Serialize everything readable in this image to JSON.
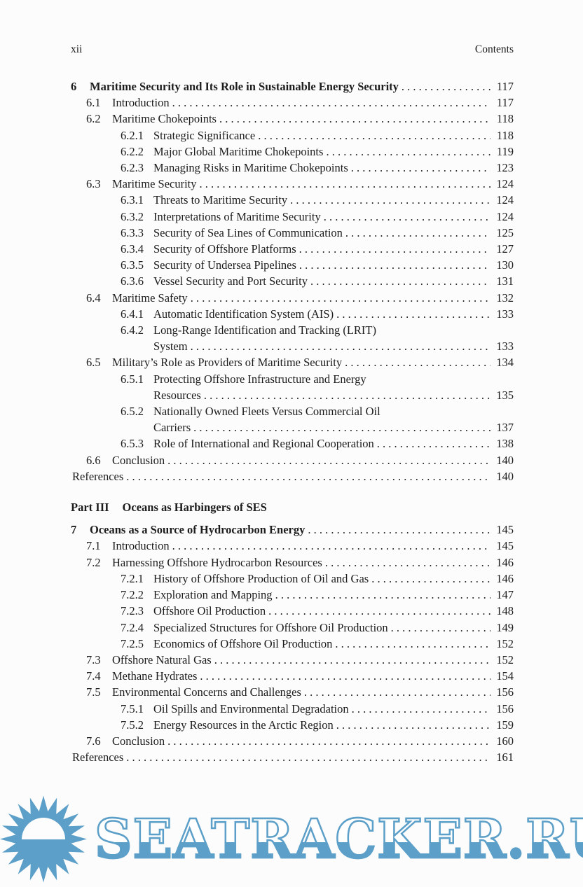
{
  "header": {
    "page_number": "xii",
    "running_title": "Contents"
  },
  "toc": {
    "entries": [
      {
        "level": "chapter",
        "number": "6",
        "title": "Maritime Security and Its Role in Sustainable Energy Security",
        "page": "117"
      },
      {
        "level": "section",
        "number": "6.1",
        "title": "Introduction",
        "page": "117"
      },
      {
        "level": "section",
        "number": "6.2",
        "title": "Maritime Chokepoints",
        "page": "118"
      },
      {
        "level": "subsection",
        "number": "6.2.1",
        "title": "Strategic Significance",
        "page": "118"
      },
      {
        "level": "subsection",
        "number": "6.2.2",
        "title": "Major Global Maritime Chokepoints",
        "page": "119"
      },
      {
        "level": "subsection",
        "number": "6.2.3",
        "title": "Managing Risks in Maritime Chokepoints",
        "page": "123"
      },
      {
        "level": "section",
        "number": "6.3",
        "title": "Maritime Security",
        "page": "124"
      },
      {
        "level": "subsection",
        "number": "6.3.1",
        "title": "Threats to Maritime Security",
        "page": "124"
      },
      {
        "level": "subsection",
        "number": "6.3.2",
        "title": "Interpretations of Maritime Security",
        "page": "124"
      },
      {
        "level": "subsection",
        "number": "6.3.3",
        "title": "Security of Sea Lines of Communication",
        "page": "125"
      },
      {
        "level": "subsection",
        "number": "6.3.4",
        "title": "Security of Offshore Platforms",
        "page": "127"
      },
      {
        "level": "subsection",
        "number": "6.3.5",
        "title": "Security of Undersea Pipelines",
        "page": "130"
      },
      {
        "level": "subsection",
        "number": "6.3.6",
        "title": "Vessel Security and Port Security",
        "page": "131"
      },
      {
        "level": "section",
        "number": "6.4",
        "title": "Maritime Safety",
        "page": "132"
      },
      {
        "level": "subsection",
        "number": "6.4.1",
        "title": "Automatic Identification System (AIS)",
        "page": "133"
      },
      {
        "level": "subsection",
        "number": "6.4.2",
        "title": "Long-Range Identification and Tracking (LRIT)",
        "title2": "System",
        "page": "133"
      },
      {
        "level": "section",
        "number": "6.5",
        "title": "Military’s Role as Providers of Maritime Security",
        "page": "134"
      },
      {
        "level": "subsection",
        "number": "6.5.1",
        "title": "Protecting Offshore Infrastructure and Energy",
        "title2": "Resources",
        "page": "135"
      },
      {
        "level": "subsection",
        "number": "6.5.2",
        "title": "Nationally Owned Fleets Versus Commercial Oil",
        "title2": "Carriers",
        "page": "137"
      },
      {
        "level": "subsection",
        "number": "6.5.3",
        "title": "Role of International and Regional Cooperation",
        "page": "138"
      },
      {
        "level": "section",
        "number": "6.6",
        "title": "Conclusion",
        "page": "140"
      },
      {
        "level": "references",
        "title": "References",
        "page": "140"
      },
      {
        "level": "part",
        "number": "Part III",
        "title": "Oceans as Harbingers of SES"
      },
      {
        "level": "chapter",
        "number": "7",
        "title": "Oceans as a Source of Hydrocarbon Energy",
        "page": "145"
      },
      {
        "level": "section",
        "number": "7.1",
        "title": "Introduction",
        "page": "145"
      },
      {
        "level": "section",
        "number": "7.2",
        "title": "Harnessing Offshore Hydrocarbon Resources",
        "page": "146"
      },
      {
        "level": "subsection",
        "number": "7.2.1",
        "title": "History of Offshore Production of Oil and Gas",
        "page": "146"
      },
      {
        "level": "subsection",
        "number": "7.2.2",
        "title": "Exploration and Mapping",
        "page": "147"
      },
      {
        "level": "subsection",
        "number": "7.2.3",
        "title": "Offshore Oil Production",
        "page": "148"
      },
      {
        "level": "subsection",
        "number": "7.2.4",
        "title": "Specialized Structures for Offshore Oil Production",
        "page": "149"
      },
      {
        "level": "subsection",
        "number": "7.2.5",
        "title": "Economics of Offshore Oil Production",
        "page": "152"
      },
      {
        "level": "section",
        "number": "7.3",
        "title": "Offshore Natural Gas",
        "page": "152"
      },
      {
        "level": "section",
        "number": "7.4",
        "title": "Methane Hydrates",
        "page": "154"
      },
      {
        "level": "section",
        "number": "7.5",
        "title": "Environmental Concerns and Challenges",
        "page": "156"
      },
      {
        "level": "subsection",
        "number": "7.5.1",
        "title": "Oil Spills and Environmental Degradation",
        "page": "156"
      },
      {
        "level": "subsection",
        "number": "7.5.2",
        "title": "Energy Resources in the Arctic Region",
        "page": "159"
      },
      {
        "level": "section",
        "number": "7.6",
        "title": "Conclusion",
        "page": "160"
      },
      {
        "level": "references",
        "title": "References",
        "page": "161"
      }
    ]
  },
  "watermark": {
    "text": "SEATRACKER.RU",
    "color": "#5c9fc8",
    "logo": "sun-icon"
  }
}
